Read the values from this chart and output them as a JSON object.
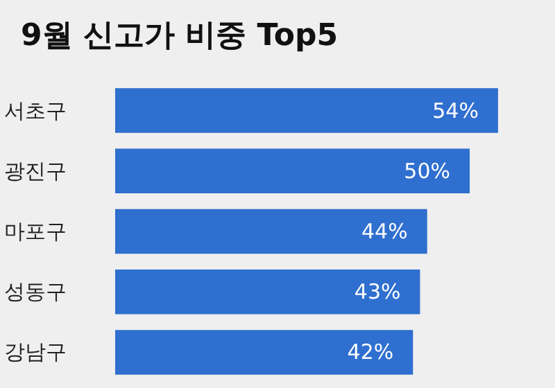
{
  "chart_data": {
    "type": "bar",
    "orientation": "horizontal",
    "title": "9월 신고가 비중 Top5",
    "categories": [
      "서초구",
      "광진구",
      "마포구",
      "성동구",
      "강남구"
    ],
    "values": [
      54,
      50,
      44,
      43,
      42
    ],
    "value_labels": [
      "54%",
      "50%",
      "44%",
      "43%",
      "42%"
    ],
    "color": "#2f6fcf",
    "tick_labels": "y"
  }
}
